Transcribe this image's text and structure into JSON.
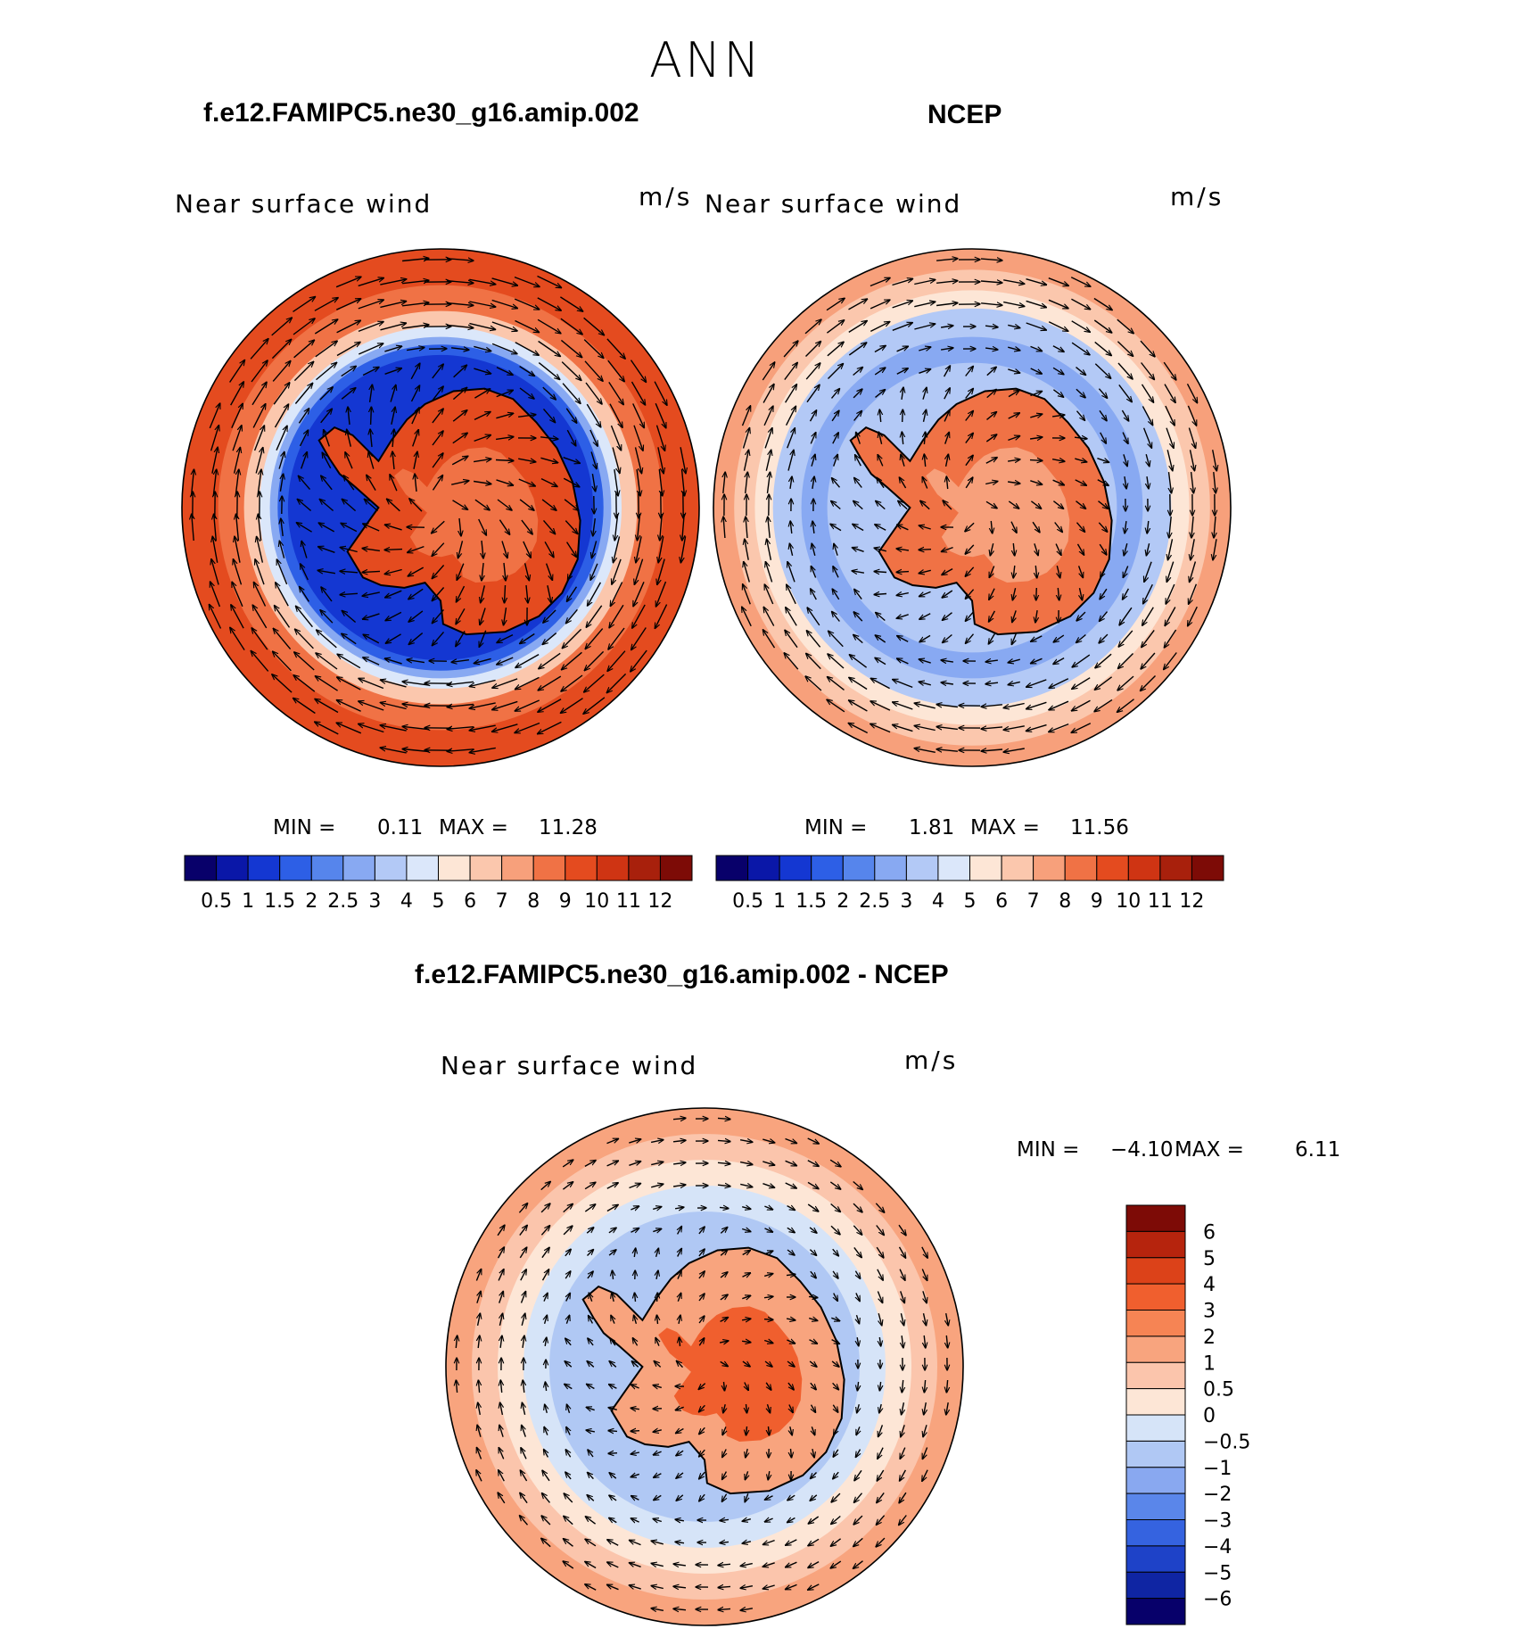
{
  "title": "ANN",
  "panels": [
    {
      "heading": "f.e12.FAMIPC5.ne30_g16.amip.002",
      "subtitle": "Near surface wind",
      "units": "m/s",
      "stats": {
        "min_label": "MIN =",
        "min": "0.11",
        "max_label": "MAX =",
        "max": "11.28"
      }
    },
    {
      "heading": "NCEP",
      "subtitle": "Near surface wind",
      "units": "m/s",
      "stats": {
        "min_label": "MIN =",
        "min": "1.81",
        "max_label": "MAX =",
        "max": "11.56"
      }
    },
    {
      "heading": "f.e12.FAMIPC5.ne30_g16.amip.002 - NCEP",
      "subtitle": "Near surface wind",
      "units": "m/s",
      "stats": {
        "min_label": "MIN =",
        "min": "−4.10",
        "max_label": "MAX =",
        "max": "6.11"
      }
    }
  ],
  "abs_scale": {
    "labels": [
      "0.5",
      "1",
      "1.5",
      "2",
      "2.5",
      "3",
      "4",
      "5",
      "6",
      "7",
      "8",
      "9",
      "10",
      "11",
      "12"
    ],
    "colors": [
      "#08006a",
      "#0a17a8",
      "#1437d2",
      "#2d5fe6",
      "#5685ec",
      "#88a9f2",
      "#b3c9f6",
      "#dbe7fa",
      "#fde6d6",
      "#fbc7ad",
      "#f7a07b",
      "#f07245",
      "#e44b1f",
      "#cf3413",
      "#a8200c",
      "#7d0b06"
    ]
  },
  "diff_scale": {
    "labels": [
      "6",
      "5",
      "4",
      "3",
      "2",
      "1",
      "0.5",
      "0",
      "−0.5",
      "−1",
      "−2",
      "−3",
      "−4",
      "−5",
      "−6"
    ],
    "colors": [
      "#7d0b06",
      "#b6240d",
      "#dc4219",
      "#f05f2e",
      "#f68454",
      "#f8a47e",
      "#fbc5ac",
      "#fde6d6",
      "#d6e4f8",
      "#b0c8f4",
      "#89a8f0",
      "#5a86ea",
      "#3563e0",
      "#1e42c8",
      "#0f25a3",
      "#07006a"
    ]
  },
  "chart_data": [
    {
      "type": "heatmap",
      "title": "f.e12.FAMIPC5.ne30_g16.amip.002",
      "subtitle": "Near surface wind",
      "units": "m/s",
      "projection": "south polar stereographic",
      "min": 0.11,
      "max": 11.28,
      "contour_levels": [
        0.5,
        1,
        1.5,
        2,
        2.5,
        3,
        4,
        5,
        6,
        7,
        8,
        9,
        10,
        11,
        12
      ],
      "vectors": "wind direction arrows"
    },
    {
      "type": "heatmap",
      "title": "NCEP",
      "subtitle": "Near surface wind",
      "units": "m/s",
      "projection": "south polar stereographic",
      "min": 1.81,
      "max": 11.56,
      "contour_levels": [
        0.5,
        1,
        1.5,
        2,
        2.5,
        3,
        4,
        5,
        6,
        7,
        8,
        9,
        10,
        11,
        12
      ],
      "vectors": "wind direction arrows"
    },
    {
      "type": "heatmap",
      "title": "f.e12.FAMIPC5.ne30_g16.amip.002 - NCEP",
      "subtitle": "Near surface wind",
      "units": "m/s",
      "projection": "south polar stereographic",
      "min": -4.1,
      "max": 6.11,
      "contour_levels": [
        -6,
        -5,
        -4,
        -3,
        -2,
        -1,
        -0.5,
        0,
        0.5,
        1,
        2,
        3,
        4,
        5,
        6
      ],
      "vectors": "wind difference arrows"
    }
  ]
}
